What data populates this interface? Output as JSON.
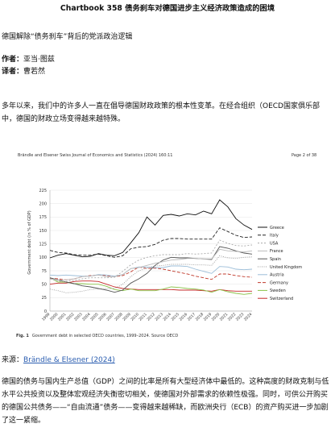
{
  "article": {
    "title": "Chartbook 358 债务刹车对德国进步主义经济政策造成的困境",
    "subtitle": "德国解除“债务刹车”背后的党派政治逻辑",
    "author_label": "作者：",
    "author": "亚当·图兹",
    "translator_label": "译者：",
    "translator": "曹若然",
    "para1": "多年以来，我们中的许多人一直在倡导德国财政政策的根本性变革。在经合组织（OECD国家俱乐部中，德国的财政立场变得越来越特殊。",
    "source_label": "来源：",
    "source_link": "Brändle & Elsener (2024)",
    "para2": "德国的债务与国内生产总值（GDP）之间的比率是所有大型经济体中最低的。这种高度的财政克制与低水平公共投资以及整体宏观经济失衡密切相关，使德国对外部需求的依赖性极强。同时，可供公开购买的德国公共债务——“自由流通”债务——变得越来越稀缺，而欧洲央行（ECB）的资产购买进一步加剧了这一紧缩。"
  },
  "figure": {
    "header_left": "Brändle and Elsener Swiss Journal of Economics and Statistics     (2024) 160:11",
    "header_right": "Page 2 of 38",
    "caption_bold": "Fig. 1",
    "caption_text": "Government debt in selected OECD countries, 1999–2024. Source OECD"
  },
  "chart_data": {
    "type": "line",
    "ylabel": "Government debt (in % of GDP)",
    "ylim": [
      0,
      225
    ],
    "yticks": [
      0,
      25,
      50,
      75,
      100,
      125,
      150,
      175,
      200,
      225
    ],
    "x": [
      "1999",
      "2000",
      "2001",
      "2002",
      "2003",
      "2004",
      "2005",
      "2006",
      "2007",
      "2008",
      "2009",
      "2010",
      "2011",
      "2012",
      "2013",
      "2014",
      "2015",
      "2016",
      "2017",
      "2018",
      "2019",
      "2020",
      "2021",
      "2022",
      "2023",
      "2024"
    ],
    "legend_position": "right",
    "series": [
      {
        "name": "Greece",
        "color": "#111111",
        "dash": "",
        "values": [
          99,
          104,
          107,
          104,
          101,
          102,
          107,
          104,
          103,
          109,
          127,
          146,
          175,
          160,
          178,
          180,
          177,
          181,
          179,
          186,
          181,
          207,
          194,
          172,
          160,
          152
        ]
      },
      {
        "name": "Italy",
        "color": "#222222",
        "dash": "4,2",
        "values": [
          113,
          109,
          108,
          105,
          104,
          104,
          106,
          103,
          100,
          103,
          116,
          119,
          120,
          124,
          132,
          135,
          135,
          134,
          134,
          134,
          134,
          155,
          148,
          141,
          137,
          138
        ]
      },
      {
        "name": "USA",
        "color": "#aaaaaa",
        "dash": "2,2",
        "values": [
          60,
          56,
          55,
          57,
          60,
          62,
          62,
          62,
          63,
          74,
          86,
          95,
          100,
          103,
          105,
          105,
          105,
          107,
          106,
          107,
          108,
          132,
          126,
          122,
          121,
          123
        ]
      },
      {
        "name": "France",
        "color": "#bbbbbb",
        "dash": "",
        "values": [
          60,
          58,
          58,
          60,
          64,
          65,
          67,
          64,
          64,
          68,
          79,
          81,
          85,
          89,
          92,
          95,
          96,
          98,
          98,
          97,
          97,
          115,
          112,
          111,
          110,
          112
        ]
      },
      {
        "name": "Spain",
        "color": "#555555",
        "dash": "",
        "values": [
          62,
          58,
          54,
          51,
          47,
          45,
          42,
          39,
          35,
          39,
          52,
          60,
          70,
          85,
          95,
          100,
          99,
          99,
          98,
          97,
          96,
          120,
          117,
          112,
          108,
          106
        ]
      },
      {
        "name": "United Kingdom",
        "color": "#999999",
        "dash": "1,1.5",
        "values": [
          41,
          38,
          34,
          35,
          37,
          40,
          41,
          42,
          42,
          50,
          64,
          75,
          80,
          84,
          85,
          87,
          87,
          87,
          86,
          86,
          85,
          103,
          99,
          98,
          100,
          101
        ]
      },
      {
        "name": "Austria",
        "color": "#9bbdd8",
        "dash": "",
        "values": [
          67,
          66,
          67,
          66,
          65,
          65,
          68,
          67,
          65,
          68,
          79,
          82,
          82,
          81,
          81,
          84,
          84,
          83,
          78,
          74,
          70,
          83,
          82,
          78,
          77,
          78
        ]
      },
      {
        "name": "Germany",
        "color": "#c0392b",
        "dash": "4,2",
        "values": [
          61,
          60,
          58,
          60,
          64,
          66,
          67,
          66,
          64,
          66,
          73,
          82,
          79,
          80,
          78,
          75,
          72,
          69,
          65,
          62,
          59,
          69,
          69,
          66,
          64,
          63
        ]
      },
      {
        "name": "Sweden",
        "color": "#8bc34a",
        "dash": "",
        "values": [
          62,
          54,
          54,
          51,
          51,
          50,
          50,
          46,
          40,
          38,
          41,
          38,
          38,
          38,
          41,
          45,
          44,
          42,
          41,
          39,
          35,
          40,
          36,
          33,
          31,
          33
        ]
      },
      {
        "name": "Switzerland",
        "color": "#c62828",
        "dash": "",
        "values": [
          50,
          52,
          52,
          55,
          56,
          56,
          55,
          50,
          45,
          42,
          41,
          40,
          40,
          40,
          40,
          40,
          39,
          39,
          39,
          38,
          37,
          40,
          38,
          37,
          37,
          37
        ]
      }
    ]
  }
}
